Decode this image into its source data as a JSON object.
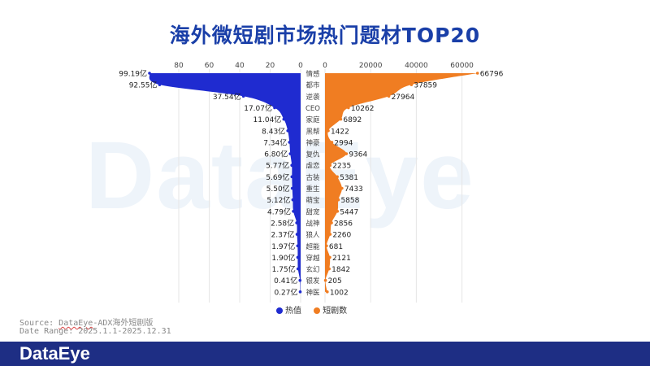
{
  "title": "海外微短剧市场热门题材TOP20",
  "watermark": "DataEye",
  "source": {
    "prefix": "Source: ",
    "underlined": "DataEye",
    "suffix": "-ADX海外短剧版",
    "date_range": "Date Range: 2025.1.1-2025.12.31"
  },
  "footer": {
    "logo": "DataEye"
  },
  "legend": [
    {
      "label": "热值",
      "color": "#1f2bd0"
    },
    {
      "label": "短剧数",
      "color": "#f07d22"
    }
  ],
  "colors": {
    "left": "#1f2bd0",
    "right": "#f07d22",
    "grid": "#e6e6e6"
  },
  "chart_data": {
    "type": "area",
    "categories": [
      "情感",
      "都市",
      "逆袭",
      "CEO",
      "家庭",
      "黑帮",
      "神豪",
      "复仇",
      "虐恋",
      "古装",
      "重生",
      "萌宝",
      "甜宠",
      "战神",
      "狼人",
      "超能",
      "穿越",
      "玄幻",
      "银发",
      "神医"
    ],
    "series": [
      {
        "name": "热值",
        "values": [
          99.19,
          92.55,
          37.54,
          17.07,
          11.04,
          8.43,
          7.34,
          6.8,
          5.77,
          5.69,
          5.5,
          5.12,
          4.79,
          2.58,
          2.37,
          1.97,
          1.9,
          1.75,
          0.41,
          0.27
        ],
        "labels": [
          "99.19亿",
          "92.55亿",
          "37.54亿",
          "17.07亿",
          "11.04亿",
          "8.43亿",
          "7.34亿",
          "6.80亿",
          "5.77亿",
          "5.69亿",
          "5.50亿",
          "5.12亿",
          "4.79亿",
          "2.58亿",
          "2.37亿",
          "1.97亿",
          "1.90亿",
          "1.75亿",
          "0.41亿",
          "0.27亿"
        ],
        "axis_ticks": [
          "80",
          "60",
          "40",
          "20",
          "0"
        ],
        "xlim": [
          0,
          100
        ]
      },
      {
        "name": "短剧数",
        "values": [
          66796,
          37859,
          27964,
          10262,
          6892,
          1422,
          2994,
          9364,
          2235,
          5381,
          7433,
          5858,
          5447,
          2856,
          2260,
          681,
          2121,
          1842,
          205,
          1002
        ],
        "labels": [
          "66796",
          "37859",
          "27964",
          "10262",
          "6892",
          "1422",
          "2994",
          "9364",
          "2235",
          "5381",
          "7433",
          "5858",
          "5447",
          "2856",
          "2260",
          "681",
          "2121",
          "1842",
          "205",
          "1002"
        ],
        "axis_ticks": [
          "0",
          "20000",
          "40000",
          "60000"
        ],
        "xlim": [
          0,
          66796
        ]
      }
    ]
  }
}
